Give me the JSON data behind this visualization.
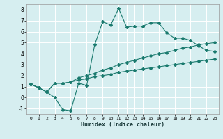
{
  "xlabel": "Humidex (Indice chaleur)",
  "background_color": "#d6eef0",
  "grid_color": "#ffffff",
  "line_color": "#1a7a6e",
  "xlim": [
    -0.5,
    23.5
  ],
  "ylim": [
    -1.5,
    8.5
  ],
  "xticks": [
    0,
    1,
    2,
    3,
    4,
    5,
    6,
    7,
    8,
    9,
    10,
    11,
    12,
    13,
    14,
    15,
    16,
    17,
    18,
    19,
    20,
    21,
    22,
    23
  ],
  "yticks": [
    -1,
    0,
    1,
    2,
    3,
    4,
    5,
    6,
    7,
    8
  ],
  "series": [
    [
      1.2,
      0.9,
      0.5,
      0.0,
      -1.1,
      -1.2,
      1.3,
      1.1,
      4.8,
      6.9,
      6.6,
      8.1,
      6.4,
      6.5,
      6.5,
      6.8,
      6.8,
      5.9,
      5.4,
      5.4,
      5.2,
      4.7,
      4.3,
      4.2
    ],
    [
      1.2,
      0.9,
      0.5,
      1.3,
      1.3,
      1.4,
      1.8,
      2.0,
      2.2,
      2.5,
      2.7,
      3.0,
      3.2,
      3.4,
      3.6,
      3.8,
      4.0,
      4.1,
      4.3,
      4.5,
      4.6,
      4.8,
      4.9,
      5.0
    ],
    [
      1.2,
      0.9,
      0.5,
      1.3,
      1.3,
      1.4,
      1.6,
      1.7,
      1.9,
      2.0,
      2.1,
      2.3,
      2.4,
      2.5,
      2.6,
      2.7,
      2.8,
      2.9,
      3.0,
      3.1,
      3.2,
      3.3,
      3.4,
      3.5
    ]
  ]
}
